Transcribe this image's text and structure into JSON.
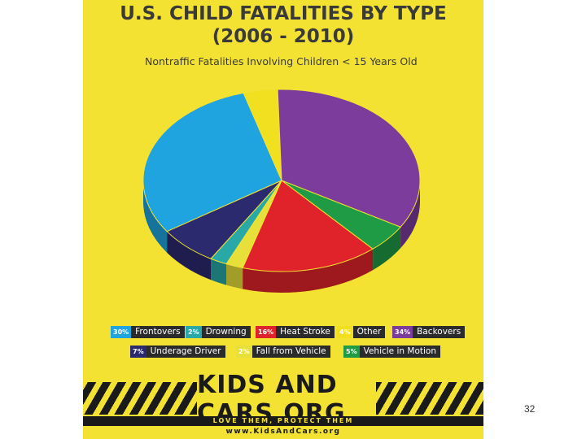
{
  "page_number": "32",
  "chart_data": {
    "type": "pie",
    "title_line1": "U.S. CHILD FATALITIES BY TYPE",
    "title_line2": "(2006 - 2010)",
    "subtitle": "Nontraffic Fatalities Involving Children < 15 Years Old",
    "slices": [
      {
        "name": "Other",
        "pct_label": "4%",
        "value": 4,
        "color": "#f0e020"
      },
      {
        "name": "Backovers",
        "pct_label": "34%",
        "value": 34,
        "color": "#7b3c9b"
      },
      {
        "name": "Vehicle in Motion",
        "pct_label": "5%",
        "value": 5,
        "color": "#1f9a45"
      },
      {
        "name": "Heat Stroke",
        "pct_label": "16%",
        "value": 16,
        "color": "#e0232a"
      },
      {
        "name": "Fall from Vehicle",
        "pct_label": "2%",
        "value": 2,
        "color": "#e8e03a"
      },
      {
        "name": "Drowning",
        "pct_label": "2%",
        "value": 2,
        "color": "#28a9a8"
      },
      {
        "name": "Underage Driver",
        "pct_label": "7%",
        "value": 7,
        "color": "#2b2a6e"
      },
      {
        "name": "Frontovers",
        "pct_label": "30%",
        "value": 30,
        "color": "#1fa4df"
      }
    ]
  },
  "branding": {
    "logo_text": "KIDS AND CARS.ORG",
    "tagline": "LOVE THEM, PROTECT THEM",
    "url": "www.KidsAndCars.org"
  }
}
